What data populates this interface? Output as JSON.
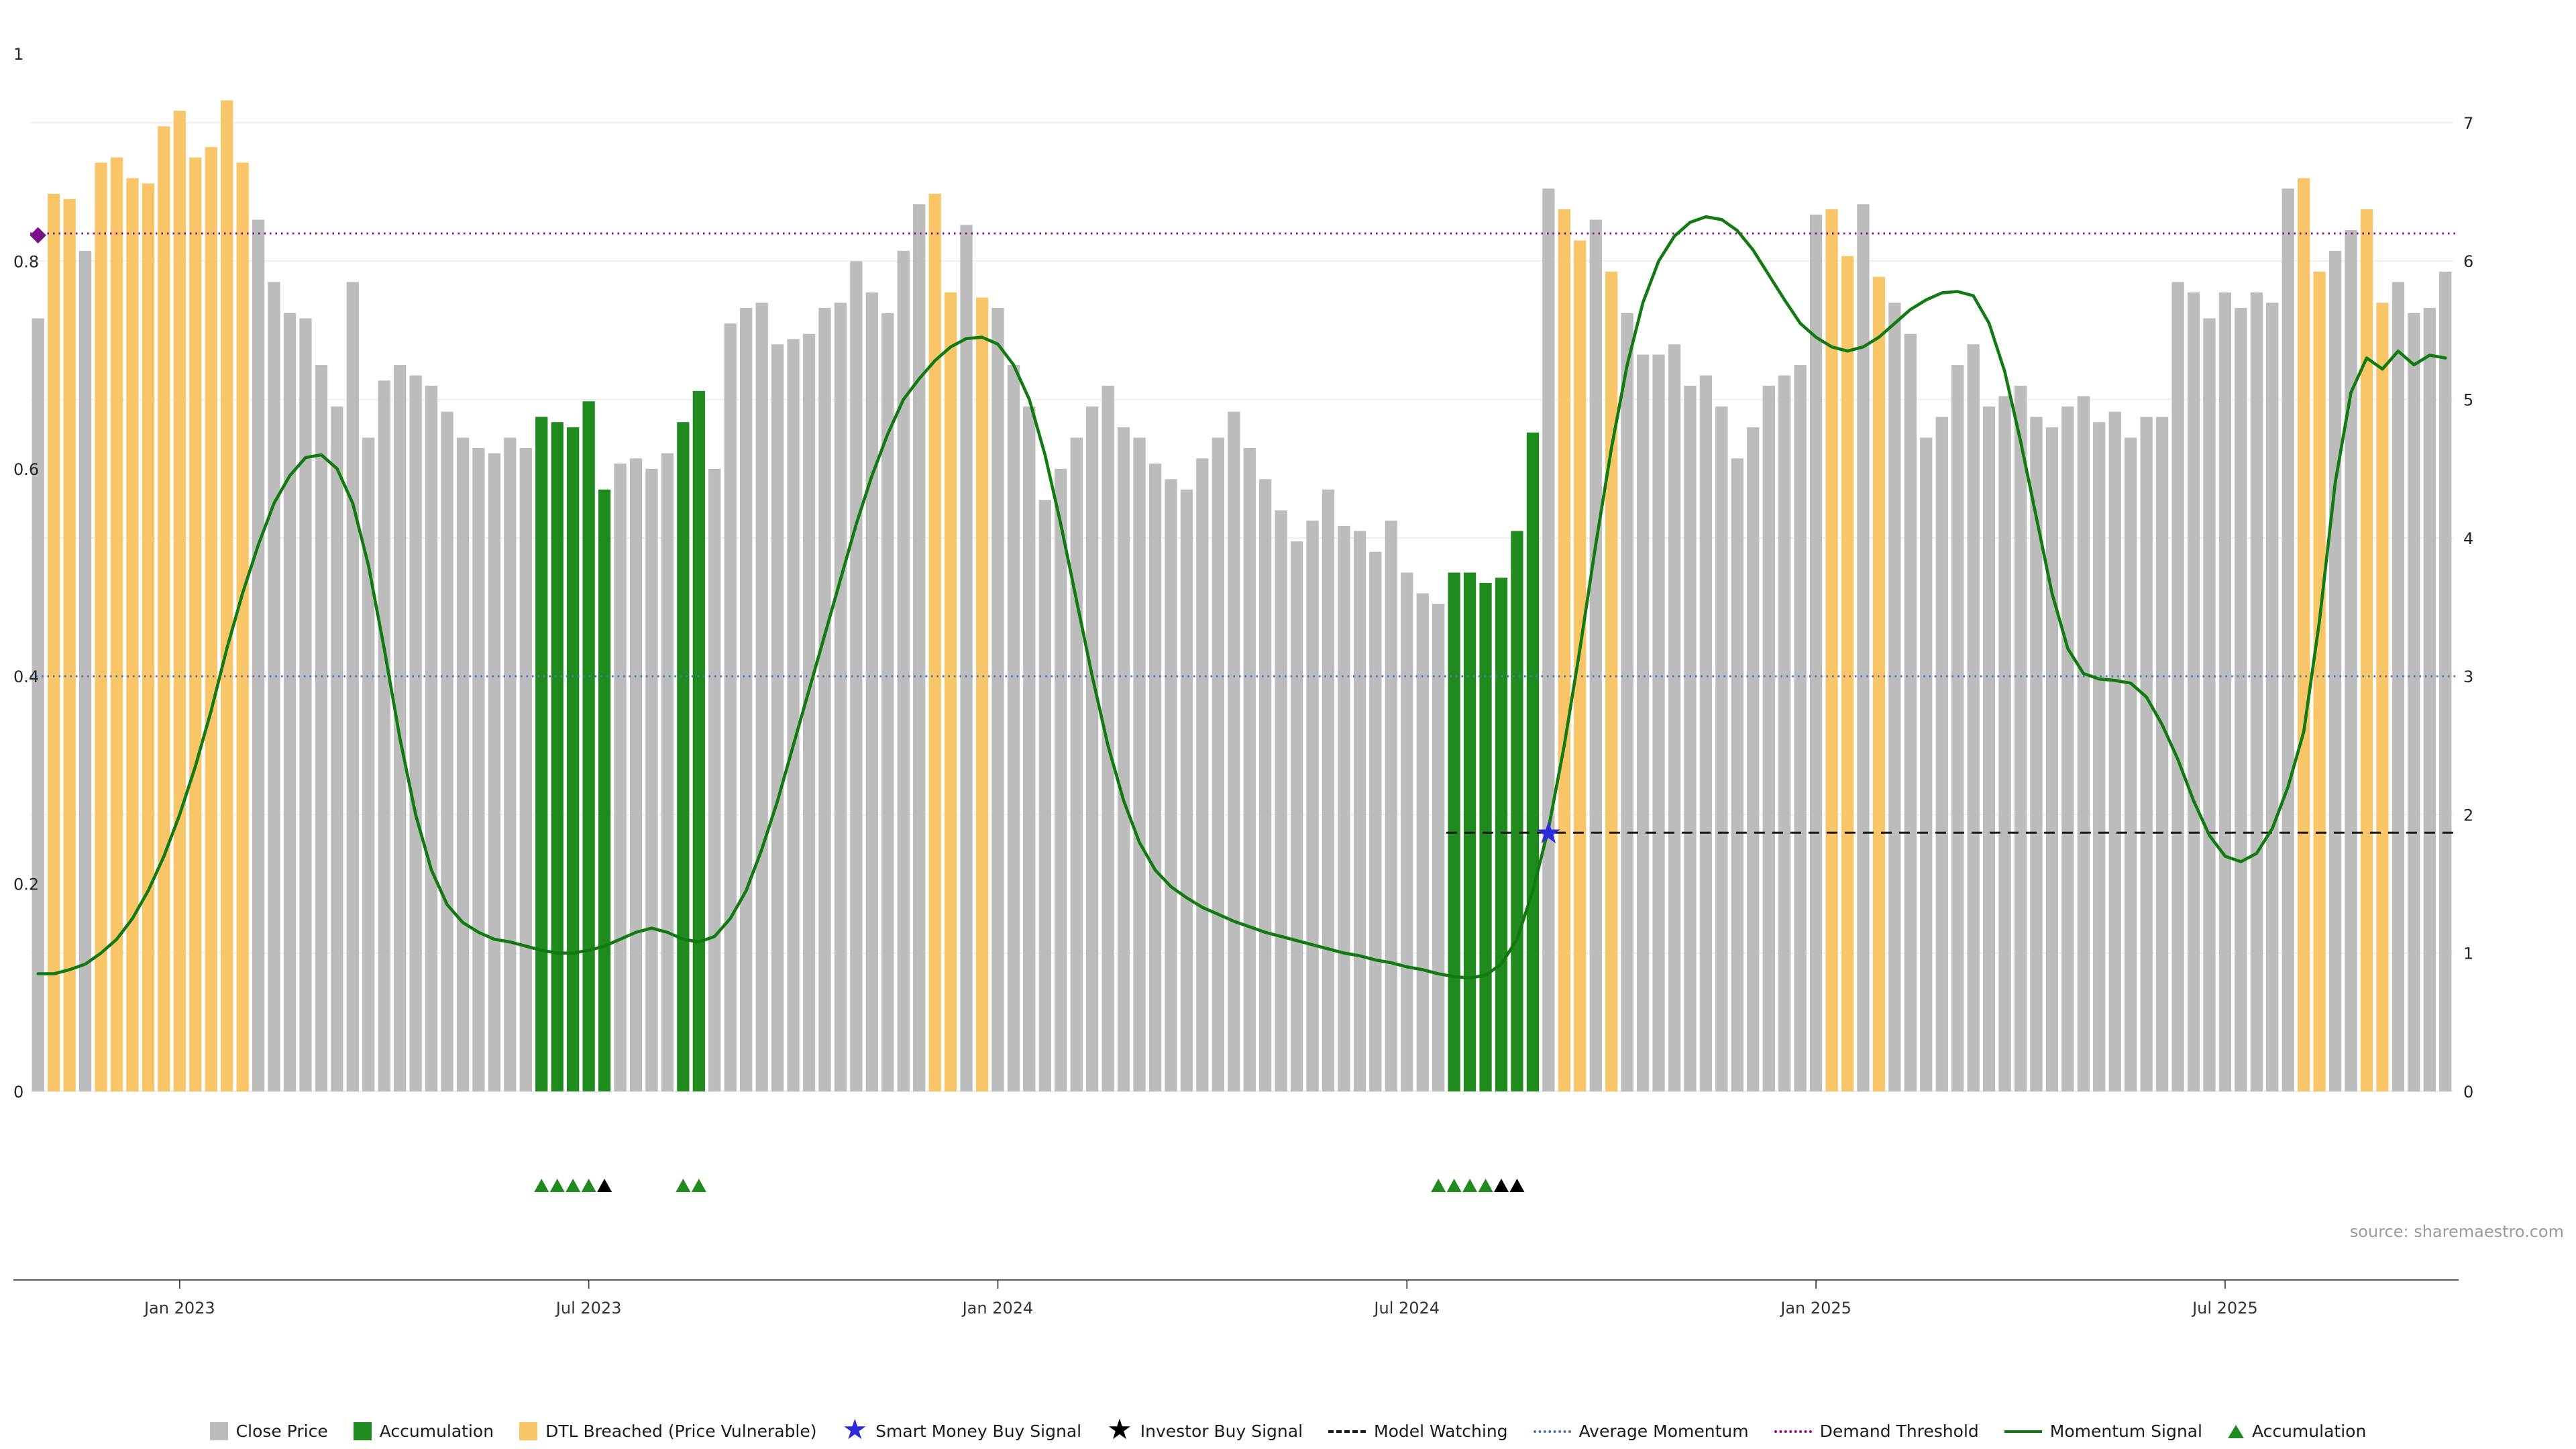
{
  "page": {
    "source_note": "source: sharemaestro.com"
  },
  "colors": {
    "close": "#bcbcbc",
    "accumulation": "#1f8b1f",
    "dtl": "#f8c568",
    "momentum_line": "#117a11",
    "demand_threshold": "#8a0f8a",
    "average_momentum": "#4878b0",
    "model_watching": "#1a1a1a",
    "smart_money_star": "#2b2bd9",
    "investor_star": "#000000",
    "diamond": "#7a0f8a",
    "grid": "#ececec",
    "axis_text": "#262626",
    "tick_label": "#333333"
  },
  "axes": {
    "left_ticks": [
      "0",
      "0.2",
      "0.4",
      "0.6",
      "0.8",
      "1"
    ],
    "left_values": [
      0,
      0.2,
      0.4,
      0.6,
      0.8,
      1
    ],
    "right_ticks": [
      "0",
      "1",
      "2",
      "3",
      "4",
      "5",
      "6",
      "7"
    ],
    "right_values": [
      0,
      1,
      2,
      3,
      4,
      5,
      6,
      7
    ],
    "x_ticks": [
      {
        "label": "Jan 2023",
        "bar": 10
      },
      {
        "label": "Jul 2023",
        "bar": 36
      },
      {
        "label": "Jan 2024",
        "bar": 62
      },
      {
        "label": "Jul 2024",
        "bar": 88
      },
      {
        "label": "Jan 2025",
        "bar": 114
      },
      {
        "label": "Jul 2025",
        "bar": 140
      }
    ]
  },
  "chart_data": {
    "type": "bar+line",
    "title": "",
    "bar_series_name": "Close Price (normalized, left axis 0-1)",
    "line_series_name": "Momentum Signal (right axis 0-7)",
    "ylim_left": [
      0,
      1
    ],
    "ylim_right": [
      0,
      7
    ],
    "bar_type_legend": {
      "g": "Close Price",
      "a": "Accumulation",
      "d": "DTL Breached (Price Vulnerable)"
    },
    "bar_types": "gddgddddddddddggggggggggggggggggaaaaaggggaaggggggggggggggddgdgggggggggggggggggggggggggggggaaaaaagddgdgggggggggggggddgdggggggggggggggggggggggggggddggddggggg",
    "bar_values": [
      0.745,
      0.865,
      0.86,
      0.81,
      0.895,
      0.9,
      0.88,
      0.875,
      0.93,
      0.945,
      0.9,
      0.91,
      0.955,
      0.895,
      0.84,
      0.78,
      0.75,
      0.745,
      0.7,
      0.66,
      0.78,
      0.63,
      0.685,
      0.7,
      0.69,
      0.68,
      0.655,
      0.63,
      0.62,
      0.615,
      0.63,
      0.62,
      0.65,
      0.645,
      0.64,
      0.665,
      0.58,
      0.605,
      0.61,
      0.6,
      0.615,
      0.645,
      0.675,
      0.6,
      0.74,
      0.755,
      0.76,
      0.72,
      0.725,
      0.73,
      0.755,
      0.76,
      0.8,
      0.77,
      0.75,
      0.81,
      0.855,
      0.865,
      0.77,
      0.835,
      0.765,
      0.755,
      0.7,
      0.66,
      0.57,
      0.6,
      0.63,
      0.66,
      0.68,
      0.64,
      0.63,
      0.605,
      0.59,
      0.58,
      0.61,
      0.63,
      0.655,
      0.62,
      0.59,
      0.56,
      0.53,
      0.55,
      0.58,
      0.545,
      0.54,
      0.52,
      0.55,
      0.5,
      0.48,
      0.47,
      0.5,
      0.5,
      0.49,
      0.495,
      0.54,
      0.635,
      0.87,
      0.85,
      0.82,
      0.84,
      0.79,
      0.75,
      0.71,
      0.71,
      0.72,
      0.68,
      0.69,
      0.66,
      0.61,
      0.64,
      0.68,
      0.69,
      0.7,
      0.845,
      0.85,
      0.805,
      0.855,
      0.785,
      0.76,
      0.73,
      0.63,
      0.65,
      0.7,
      0.72,
      0.66,
      0.67,
      0.68,
      0.65,
      0.64,
      0.66,
      0.67,
      0.645,
      0.655,
      0.63,
      0.65,
      0.65,
      0.78,
      0.77,
      0.745,
      0.77,
      0.755,
      0.77,
      0.76,
      0.87,
      0.88,
      0.79,
      0.81,
      0.83,
      0.85,
      0.76,
      0.78,
      0.75,
      0.755,
      0.79
    ],
    "line_values": [
      0.85,
      0.85,
      0.88,
      0.92,
      1.0,
      1.1,
      1.25,
      1.45,
      1.7,
      2.0,
      2.35,
      2.75,
      3.2,
      3.6,
      3.95,
      4.25,
      4.45,
      4.58,
      4.6,
      4.5,
      4.25,
      3.8,
      3.2,
      2.55,
      2.0,
      1.6,
      1.35,
      1.22,
      1.15,
      1.1,
      1.08,
      1.05,
      1.02,
      1.0,
      1.0,
      1.02,
      1.05,
      1.1,
      1.15,
      1.18,
      1.15,
      1.1,
      1.08,
      1.12,
      1.25,
      1.45,
      1.75,
      2.1,
      2.5,
      2.9,
      3.3,
      3.7,
      4.1,
      4.45,
      4.75,
      5.0,
      5.15,
      5.28,
      5.38,
      5.44,
      5.45,
      5.4,
      5.25,
      5.0,
      4.6,
      4.1,
      3.55,
      3.0,
      2.5,
      2.1,
      1.8,
      1.6,
      1.48,
      1.4,
      1.33,
      1.28,
      1.23,
      1.19,
      1.15,
      1.12,
      1.09,
      1.06,
      1.03,
      1.0,
      0.98,
      0.95,
      0.93,
      0.9,
      0.88,
      0.85,
      0.83,
      0.82,
      0.84,
      0.92,
      1.1,
      1.45,
      1.9,
      2.5,
      3.2,
      3.95,
      4.65,
      5.25,
      5.7,
      6.0,
      6.18,
      6.28,
      6.32,
      6.3,
      6.22,
      6.08,
      5.9,
      5.72,
      5.55,
      5.45,
      5.38,
      5.35,
      5.38,
      5.45,
      5.55,
      5.65,
      5.72,
      5.77,
      5.78,
      5.75,
      5.55,
      5.2,
      4.7,
      4.15,
      3.6,
      3.2,
      3.02,
      2.98,
      2.97,
      2.95,
      2.85,
      2.65,
      2.4,
      2.1,
      1.85,
      1.7,
      1.66,
      1.72,
      1.9,
      2.2,
      2.6,
      3.4,
      4.4,
      5.05,
      5.3,
      5.22,
      5.35,
      5.25,
      5.32,
      5.3
    ],
    "hlines": [
      {
        "name": "Demand Threshold",
        "axis": "right",
        "value": 6.2,
        "style": "dotted",
        "color_key": "demand_threshold"
      },
      {
        "name": "Average Momentum",
        "axis": "right",
        "value": 3.0,
        "style": "dotted",
        "color_key": "average_momentum"
      },
      {
        "name": "Model Watching",
        "axis": "right",
        "value": 1.87,
        "style": "dashed",
        "color_key": "model_watching",
        "start_bar": 91
      }
    ],
    "markers": {
      "accumulation_triangles_bars": [
        33,
        34,
        35,
        36,
        42,
        43,
        90,
        91,
        92,
        93
      ],
      "investor_triangles_bars": [
        37,
        94,
        95
      ],
      "smart_money_star": {
        "bar": 97,
        "value": 1.87
      },
      "demand_diamond": {
        "bar": 1,
        "value": 6.2
      }
    }
  },
  "legend": {
    "items": [
      {
        "label": "Close Price",
        "swatch": "square",
        "color_key": "close",
        "icon_name": "close-price-swatch-icon"
      },
      {
        "label": "Accumulation",
        "swatch": "square",
        "color_key": "accumulation",
        "icon_name": "accumulation-swatch-icon"
      },
      {
        "label": "DTL Breached (Price Vulnerable)",
        "swatch": "square",
        "color_key": "dtl",
        "icon_name": "dtl-breached-swatch-icon"
      },
      {
        "label": "Smart Money Buy Signal",
        "swatch": "star",
        "color_key": "smart_money_star",
        "icon_name": "smart-money-star-icon"
      },
      {
        "label": "Investor Buy Signal",
        "swatch": "star",
        "color_key": "investor_star",
        "icon_name": "investor-star-icon"
      },
      {
        "label": "Model Watching",
        "swatch": "dashed-line",
        "color_key": "model_watching",
        "icon_name": "model-watching-dash-icon"
      },
      {
        "label": "Average Momentum",
        "swatch": "dotted-line",
        "color_key": "average_momentum",
        "icon_name": "average-momentum-dots-icon"
      },
      {
        "label": "Demand Threshold",
        "swatch": "dotted-line",
        "color_key": "demand_threshold",
        "icon_name": "demand-threshold-dots-icon"
      },
      {
        "label": "Momentum Signal",
        "swatch": "solid-line",
        "color_key": "momentum_line",
        "icon_name": "momentum-line-icon"
      },
      {
        "label": "Accumulation",
        "swatch": "triangle",
        "color_key": "accumulation",
        "icon_name": "accumulation-triangle-icon"
      }
    ]
  }
}
